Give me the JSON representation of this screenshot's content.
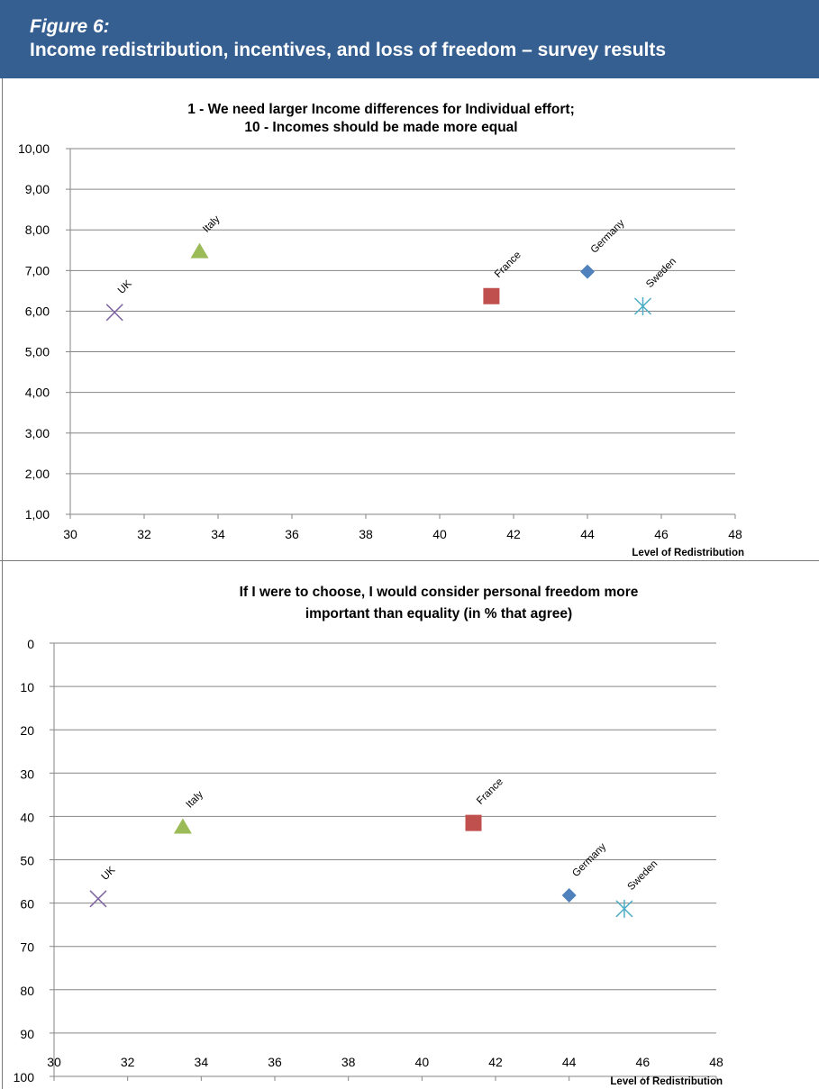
{
  "figure": {
    "label": "Figure 6:",
    "title": "Income redistribution, incentives, and loss of freedom – survey results"
  },
  "chart_data": [
    {
      "type": "scatter",
      "title_lines": [
        "1 - We need larger Income differences for Individual effort;",
        "10 - Incomes should be made more equal"
      ],
      "xlabel": "Level of Redistribution",
      "ylabel": "",
      "xlim": [
        30,
        48
      ],
      "ylim": [
        1,
        10
      ],
      "y_reversed": false,
      "x_ticks": [
        30,
        32,
        34,
        36,
        38,
        40,
        42,
        44,
        46,
        48
      ],
      "y_ticks": [
        1,
        2,
        3,
        4,
        5,
        6,
        7,
        8,
        9,
        10
      ],
      "y_tick_labels": [
        "1,00",
        "2,00",
        "3,00",
        "4,00",
        "5,00",
        "6,00",
        "7,00",
        "8,00",
        "9,00",
        "10,00"
      ],
      "grid": "horizontal",
      "points": [
        {
          "label": "UK",
          "x": 31.2,
          "y": 5.97,
          "marker": "x",
          "color": "#8064A2"
        },
        {
          "label": "Italy",
          "x": 33.5,
          "y": 7.48,
          "marker": "triangle",
          "color": "#9BBB59"
        },
        {
          "label": "France",
          "x": 41.4,
          "y": 6.37,
          "marker": "square",
          "color": "#C0504D"
        },
        {
          "label": "Germany",
          "x": 44.0,
          "y": 6.97,
          "marker": "diamond",
          "color": "#4F81BD"
        },
        {
          "label": "Sweden",
          "x": 45.5,
          "y": 6.12,
          "marker": "star",
          "color": "#4BACC6"
        }
      ]
    },
    {
      "type": "scatter",
      "title_lines": [
        "If I were to choose, I would consider personal freedom more",
        "important than equality  (in % that agree)"
      ],
      "xlabel": "Level of Redistribution",
      "ylabel": "",
      "xlim": [
        30,
        48
      ],
      "ylim": [
        0,
        100
      ],
      "y_reversed": true,
      "x_ticks": [
        30,
        32,
        34,
        36,
        38,
        40,
        42,
        44,
        46,
        48
      ],
      "y_ticks": [
        0,
        10,
        20,
        30,
        40,
        50,
        60,
        70,
        80,
        90,
        100
      ],
      "y_tick_labels": [
        "0",
        "10",
        "20",
        "30",
        "40",
        "50",
        "60",
        "70",
        "80",
        "90",
        "100"
      ],
      "grid": "horizontal",
      "points": [
        {
          "label": "UK",
          "x": 31.2,
          "y": 59,
          "marker": "x",
          "color": "#8064A2"
        },
        {
          "label": "Italy",
          "x": 33.5,
          "y": 42.3,
          "marker": "triangle",
          "color": "#9BBB59"
        },
        {
          "label": "France",
          "x": 41.4,
          "y": 41.5,
          "marker": "square",
          "color": "#C0504D"
        },
        {
          "label": "Germany",
          "x": 44.0,
          "y": 58.2,
          "marker": "diamond",
          "color": "#4F81BD"
        },
        {
          "label": "Sweden",
          "x": 45.5,
          "y": 61.3,
          "marker": "star",
          "color": "#4BACC6"
        }
      ]
    }
  ]
}
